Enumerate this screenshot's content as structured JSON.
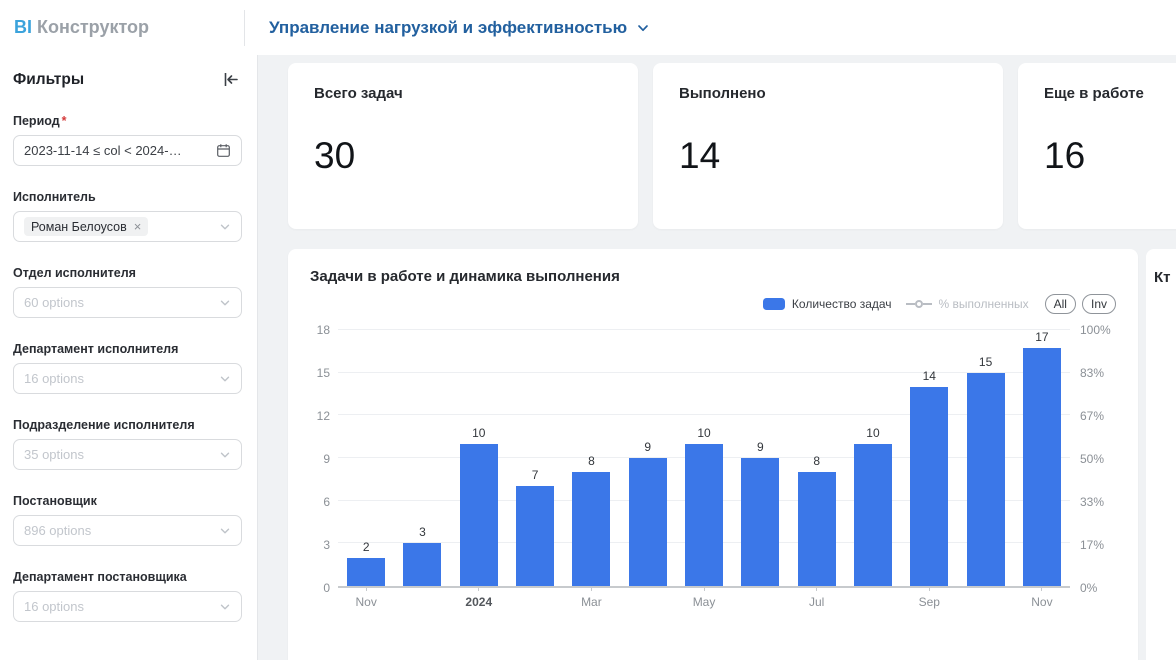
{
  "header": {
    "logo_bi": "BI",
    "logo_text": "Конструктор",
    "dashboard_title": "Управление нагрузкой и эффективностью"
  },
  "sidebar": {
    "title": "Фильтры",
    "filters": [
      {
        "label": "Период",
        "required": true,
        "type": "date",
        "value": "2023-11-14 ≤ col < 2024-…"
      },
      {
        "label": "Исполнитель",
        "type": "tag",
        "tag": "Роман Белоусов"
      },
      {
        "label": "Отдел исполнителя",
        "type": "select",
        "placeholder": "60 options"
      },
      {
        "label": "Департамент исполнителя",
        "type": "select",
        "placeholder": "16 options"
      },
      {
        "label": "Подразделение исполнителя",
        "type": "select",
        "placeholder": "35 options"
      },
      {
        "label": "Постановщик",
        "type": "select",
        "placeholder": "896 options"
      },
      {
        "label": "Департамент постановщика",
        "type": "select",
        "placeholder": "16 options"
      }
    ]
  },
  "kpi_cards": [
    {
      "title": "Всего задач",
      "value": "30"
    },
    {
      "title": "Выполнено",
      "value": "14"
    },
    {
      "title": "Еще в работе",
      "value": "16"
    }
  ],
  "chart": {
    "title": "Задачи в работе и динамика выполнения",
    "legend": [
      {
        "label": "Количество задач",
        "active": true
      },
      {
        "label": "% выполненных",
        "active": false
      }
    ],
    "buttons": [
      "All",
      "Inv"
    ]
  },
  "partial_card": {
    "title": "Кт"
  },
  "chart_data": {
    "type": "bar",
    "x_tick_labels": [
      "Nov",
      "",
      "2024",
      "",
      "Mar",
      "",
      "May",
      "",
      "Jul",
      "",
      "Sep",
      "",
      "Nov"
    ],
    "emphasized_tick": "2024",
    "values": [
      2,
      3,
      10,
      7,
      8,
      9,
      10,
      9,
      8,
      10,
      14,
      15,
      17
    ],
    "left_axis": {
      "ticks": [
        0,
        3,
        6,
        9,
        12,
        15,
        18
      ],
      "max": 18
    },
    "right_axis": {
      "ticks": [
        "0%",
        "17%",
        "33%",
        "50%",
        "67%",
        "83%",
        "100%"
      ]
    },
    "bar_color": "#3B77E8",
    "grid": true,
    "legend_position": "top-right",
    "title": "Задачи в работе и динамика выполнения",
    "series": [
      {
        "name": "Количество задач",
        "values": [
          2,
          3,
          10,
          7,
          8,
          9,
          10,
          9,
          8,
          10,
          14,
          15,
          17
        ],
        "visible": true
      },
      {
        "name": "% выполненных",
        "values": [],
        "visible": false
      }
    ]
  }
}
